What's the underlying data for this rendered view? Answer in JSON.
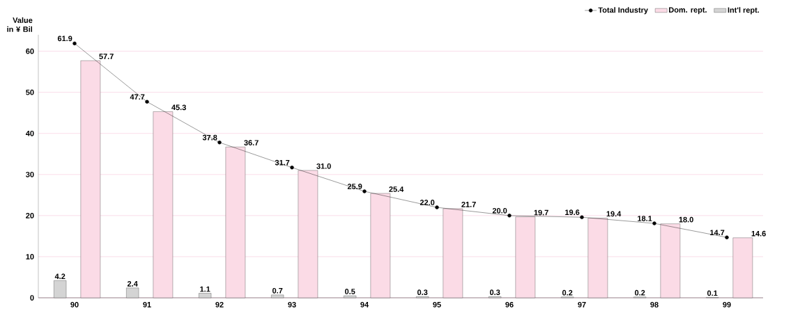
{
  "chart_data": {
    "type": "bar",
    "ylabel": "Value in ¥ Bil",
    "categories": [
      "90",
      "91",
      "92",
      "93",
      "94",
      "95",
      "96",
      "97",
      "98",
      "99"
    ],
    "series": [
      {
        "name": "Total Industry",
        "type": "line",
        "color": "#000000",
        "marker": "circle",
        "line_style": "solid",
        "values": [
          61.9,
          47.7,
          37.8,
          31.7,
          25.9,
          22.0,
          20.0,
          19.6,
          18.1,
          14.7
        ],
        "value_labels": [
          "61.9",
          "47.7",
          "37.8",
          "31.7",
          "25.9",
          "22.0",
          "20.0",
          "19.6",
          "18.1",
          "14.7"
        ]
      },
      {
        "name": "Dom. rept.",
        "color": "#fbdbe6",
        "values": [
          57.7,
          45.3,
          36.7,
          31.0,
          25.4,
          21.7,
          19.7,
          19.4,
          18.0,
          14.6
        ],
        "value_labels": [
          "57.7",
          "45.3",
          "36.7",
          "31.0",
          "25.4",
          "21.7",
          "19.7",
          "19.4",
          "18.0",
          "14.6"
        ]
      },
      {
        "name": "Int'l rept.",
        "color": "#d4d4d4",
        "values": [
          4.2,
          2.4,
          1.1,
          0.7,
          0.5,
          0.3,
          0.3,
          0.2,
          0.2,
          0.1
        ],
        "value_labels": [
          "4.2",
          "2.4",
          "1.1",
          "0.7",
          "0.5",
          "0.3",
          "0.3",
          "0.2",
          "0.2",
          "0.1"
        ]
      }
    ],
    "ylim": [
      0,
      64
    ],
    "yticks": [
      0,
      10,
      20,
      30,
      40,
      50,
      60
    ],
    "grid": "y",
    "legend": "top right"
  }
}
